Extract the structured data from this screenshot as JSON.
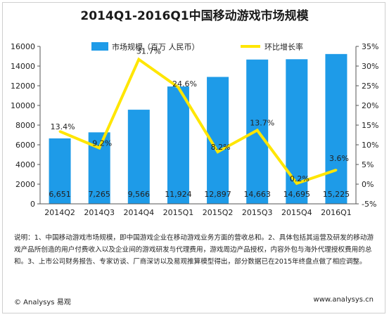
{
  "chart_data": {
    "type": "bar",
    "title": "2014Q1-2016Q1中国移动游戏市场规模",
    "categories": [
      "2014Q2",
      "2014Q3",
      "2014Q4",
      "2015Q1",
      "2015Q2",
      "2015Q3",
      "2015Q4",
      "2016Q1"
    ],
    "series": [
      {
        "name": "市场规模（百万 人民币）",
        "type": "bar",
        "axis": "left",
        "color": "#1e9be8",
        "values": [
          6651,
          7265,
          9566,
          11924,
          12897,
          14663,
          14695,
          15225
        ],
        "labels": [
          "6,651",
          "7,265",
          "9,566",
          "11,924",
          "12,897",
          "14,663",
          "14,695",
          "15,225"
        ]
      },
      {
        "name": "环比增长率",
        "type": "line",
        "axis": "right",
        "color": "#ffe600",
        "values": [
          13.4,
          9.2,
          31.7,
          24.6,
          8.2,
          13.7,
          0.2,
          3.6
        ],
        "labels": [
          "13.4%",
          "9.2%",
          "31.7%",
          "24.6%",
          "8.2%",
          "13.7%",
          "0.2%",
          "3.6%"
        ]
      }
    ],
    "yleft": {
      "ylim": [
        0,
        16000
      ],
      "ticks": [
        "0",
        "2000",
        "4000",
        "6000",
        "8000",
        "10000",
        "12000",
        "14000",
        "16000"
      ]
    },
    "yright": {
      "ylim": [
        -5,
        35
      ],
      "ticks": [
        "-5%",
        "0%",
        "5%",
        "10%",
        "15%",
        "20%",
        "25%",
        "30%",
        "35%"
      ]
    },
    "legend": "top",
    "grid": false
  },
  "note": "说明：1、中国移动游戏市场规模，即中国游戏企业在移动游戏业务方面的营收总和。2、具体包括其运营及研发的移动游戏产品所创造的用户付费收入以及企业间的游戏研发与代理费用，游戏周边产品授权，内容外包与海外代理授权费用的总和。3、上市公司财务报告、专家访谈、厂商深访以及易观推算模型得出，部分数据已在2015年终盘点做了相应调整。",
  "footer": {
    "left": "© Analysys 易观",
    "right": "www.analysys.cn"
  }
}
